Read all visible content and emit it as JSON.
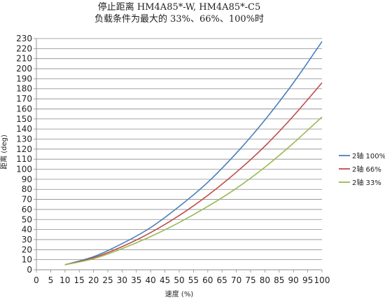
{
  "chart_data": {
    "type": "line",
    "title": "停止距离 HM4A85*-W, HM4A85*-C5",
    "subtitle": "负载条件为最大的 33%、66%、100%时",
    "xlabel": "速度 (%)",
    "ylabel": "距离 (deg)",
    "xlim": [
      0,
      100
    ],
    "ylim": [
      0,
      230
    ],
    "xticks": [
      0,
      5,
      10,
      15,
      20,
      25,
      30,
      35,
      40,
      45,
      50,
      55,
      60,
      65,
      70,
      75,
      80,
      85,
      90,
      95,
      100
    ],
    "yticks": [
      0,
      10,
      20,
      30,
      40,
      50,
      60,
      70,
      80,
      90,
      100,
      110,
      120,
      130,
      140,
      150,
      160,
      170,
      180,
      190,
      200,
      210,
      220,
      230
    ],
    "grid": true,
    "legend_position": "right",
    "x": [
      10,
      20,
      30,
      40,
      50,
      60,
      70,
      80,
      90,
      100
    ],
    "series": [
      {
        "name": "2轴 100%",
        "color": "#4a7ebb",
        "values": [
          5,
          13,
          26,
          42,
          63,
          87,
          116,
          149,
          186,
          227
        ]
      },
      {
        "name": "2轴 66%",
        "color": "#be4b48",
        "values": [
          5,
          12,
          23,
          37,
          54,
          74,
          97,
          123,
          153,
          186
        ]
      },
      {
        "name": "2轴 33%",
        "color": "#98b954",
        "values": [
          5,
          11,
          21,
          33,
          47,
          63,
          81,
          102,
          126,
          152
        ]
      }
    ]
  }
}
